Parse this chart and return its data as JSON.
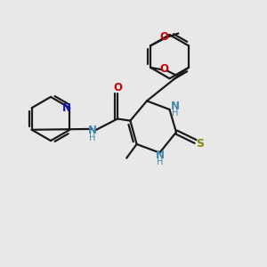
{
  "bg": "#e8e8e8",
  "bc": "#1a1a1a",
  "nc": "#1111bb",
  "oc": "#cc0000",
  "sc": "#888800",
  "nhc": "#4488aa",
  "lw": 1.6,
  "fs": 8.5,
  "xlim": [
    0,
    10
  ],
  "ylim": [
    0,
    10
  ]
}
